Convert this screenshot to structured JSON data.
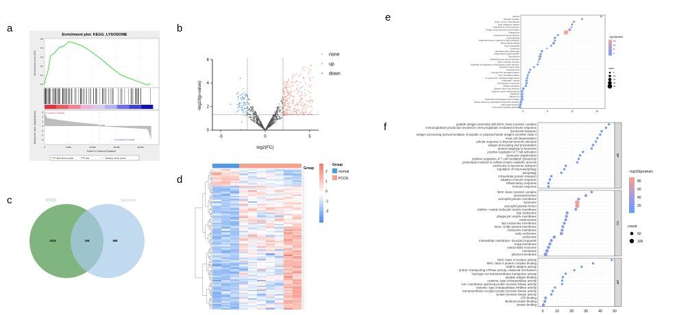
{
  "panel_labels": {
    "a": "a",
    "b": "b",
    "c": "c",
    "d": "d",
    "e": "e",
    "f": "f"
  },
  "colors": {
    "es_line": "#22dd22",
    "up": "#F8A08A",
    "down": "#4C9BEA",
    "none": "#555555",
    "normal": "#4C9BEA",
    "pcos": "#F8A08A",
    "venn_pcos": "#6aa86a",
    "venn_lysosome": "#a8cbea",
    "dot_low": "#619CFF",
    "dot_high": "#F8A08A"
  },
  "chart_data": [
    {
      "panel": "a",
      "type": "line",
      "title": "Enrichment plot: KEGG_LYSOSOME",
      "ylabel": "Enrichment score (ES)",
      "ylabel_bottom": "Ranked list metric (Signal2Noise)",
      "xlabel": "Rank in Ordered Dataset",
      "xticks": [
        "0",
        "5,000",
        "10,000",
        "15,000",
        "20,000"
      ],
      "yticks": [
        "0.5",
        "0.4",
        "0.3",
        "0.2",
        "0.1",
        "0.0"
      ],
      "yticks_bottom": [
        "3",
        "2",
        "1",
        "0",
        "-1",
        "-2",
        "-3"
      ],
      "xlim": [
        0,
        22500
      ],
      "ylim": [
        -0.02,
        0.5
      ],
      "es_curve": {
        "x": [
          0,
          300,
          600,
          900,
          1200,
          1600,
          2000,
          2600,
          3200,
          4000,
          5000,
          6000,
          7000,
          8000,
          10000,
          12000,
          14000,
          16000,
          18000,
          20000,
          21500,
          22000
        ],
        "y": [
          0,
          0.08,
          0.12,
          0.2,
          0.31,
          0.33,
          0.34,
          0.38,
          0.41,
          0.42,
          0.47,
          0.46,
          0.44,
          0.42,
          0.35,
          0.27,
          0.18,
          0.1,
          0.06,
          0.02,
          -0.01,
          0.01
        ]
      },
      "annotations": {
        "pos": "'Y' (positively correlated)",
        "zero": "Zero cross at 11404",
        "neg": "'N' (negatively correlated)"
      },
      "legend": [
        "Enrichment profile",
        "Hits",
        "Ranking metric scores"
      ]
    },
    {
      "panel": "b",
      "type": "scatter",
      "xlabel": "log2(FC)",
      "ylabel": "-log10(p-value)",
      "xticks": [
        -5,
        0,
        5
      ],
      "yticks": [
        0,
        2,
        4,
        6
      ],
      "xlim": [
        -6,
        6
      ],
      "ylim": [
        0,
        6
      ],
      "fc_threshold": 2,
      "p_threshold": 1.3,
      "legend": [
        "none",
        "up",
        "down"
      ]
    },
    {
      "panel": "c",
      "type": "venn",
      "sets": [
        {
          "name": "PCOS",
          "only": 2015
        },
        {
          "name": "lysosome",
          "only": 688
        }
      ],
      "intersection": 108
    },
    {
      "panel": "d",
      "type": "heatmap",
      "annotation_title": "Group",
      "groups": [
        "normal",
        "normal",
        "normal",
        "PCOS",
        "PCOS",
        "PCOS",
        "PCOS",
        "PCOS",
        "PCOS",
        "PCOS"
      ],
      "legend_groups": [
        "normal",
        "PCOS"
      ],
      "scale_ticks": [
        "2",
        "1",
        "0",
        "-1",
        "-2"
      ],
      "range": [
        -2.5,
        2.5
      ]
    },
    {
      "panel": "e",
      "type": "scatter",
      "xticks": [
        4,
        8,
        12,
        16
      ],
      "xlim": [
        3.9,
        17.4
      ],
      "color_title": "- log10(pvalue)",
      "color_ticks": [
        "16",
        "12",
        "8",
        "4"
      ],
      "color_range": [
        2,
        17
      ],
      "size_title": "count",
      "size_ticks": [
        "5",
        "10",
        "15",
        "20",
        "25"
      ],
      "terms": [
        {
          "name": "Asthma",
          "x": 16.7,
          "p": 4,
          "count": 6
        },
        {
          "name": "Allograft rejection",
          "x": 13.6,
          "p": 4,
          "count": 7
        },
        {
          "name": "Graft- versus- host disease",
          "x": 12.3,
          "p": 4,
          "count": 7
        },
        {
          "name": "Type I diabetes mellitus",
          "x": 12.0,
          "p": 4,
          "count": 7
        },
        {
          "name": "Collecting duct acid secretion",
          "x": 11.9,
          "p": 3,
          "count": 4
        },
        {
          "name": "Antigen processing and presentation",
          "x": 11.6,
          "p": 10,
          "count": 14
        },
        {
          "name": "Phagosome",
          "x": 11.0,
          "p": 17,
          "count": 24
        },
        {
          "name": "Autoimmune thyroid disease",
          "x": 9.7,
          "p": 4,
          "count": 7
        },
        {
          "name": "Leishmaniasis",
          "x": 9.2,
          "p": 5,
          "count": 9
        },
        {
          "name": "Intestinal immune network for IgA production",
          "x": 9.2,
          "p": 4,
          "count": 7
        },
        {
          "name": "Rheumatoid arthritis",
          "x": 9.0,
          "p": 8,
          "count": 12
        },
        {
          "name": "Viral myocarditis",
          "x": 8.6,
          "p": 4,
          "count": 7
        },
        {
          "name": "Lysosome",
          "x": 7.9,
          "p": 3,
          "count": 4
        },
        {
          "name": "Hematopoietic cell lineage",
          "x": 7.1,
          "p": 5,
          "count": 9
        },
        {
          "name": "Inflammatory bowel disease",
          "x": 6.9,
          "p": 4,
          "count": 7
        },
        {
          "name": "Tuberculosis",
          "x": 6.8,
          "p": 9,
          "count": 14
        },
        {
          "name": "Staphylococcus aureus infection",
          "x": 6.7,
          "p": 5,
          "count": 9
        },
        {
          "name": "Vibrio cholerae infection",
          "x": 6.5,
          "p": 3,
          "count": 4
        },
        {
          "name": "Epithelial cell signaling in Helicobacter pylori infection",
          "x": 6.4,
          "p": 4,
          "count": 6
        },
        {
          "name": "Synaptic vesicle cycle",
          "x": 5.8,
          "p": 4,
          "count": 6
        },
        {
          "name": "Toxoplasmosis",
          "x": 5.2,
          "p": 4,
          "count": 8
        },
        {
          "name": "Th1 and Th2 cell differentiation",
          "x": 5.0,
          "p": 4,
          "count": 8
        },
        {
          "name": "Th17 cell differentiation",
          "x": 4.8,
          "p": 4,
          "count": 8
        },
        {
          "name": "Fc gamma R- mediated phagocytosis",
          "x": 4.7,
          "p": 4,
          "count": 8
        },
        {
          "name": "Autophagy - animal",
          "x": 4.6,
          "p": 4,
          "count": 9
        },
        {
          "name": "Cell adhesion molecules",
          "x": 4.6,
          "p": 4,
          "count": 9
        },
        {
          "name": "Platelet activation",
          "x": 4.5,
          "p": 4,
          "count": 8
        },
        {
          "name": "Epstein- Barr virus infection",
          "x": 4.1,
          "p": 4,
          "count": 10
        },
        {
          "name": "Systemic lupus erythematosus",
          "x": 3.9,
          "p": 4,
          "count": 9
        },
        {
          "name": "Apoptosis",
          "x": 3.9,
          "p": 4,
          "count": 9
        },
        {
          "name": "Influenza A",
          "x": 3.9,
          "p": 4,
          "count": 9
        },
        {
          "name": "Neutrophil extracellular trap formation",
          "x": 3.9,
          "p": 4,
          "count": 10
        },
        {
          "name": "Kaposi sarcoma- associated herpesvirus infection",
          "x": 3.7,
          "p": 4,
          "count": 10
        },
        {
          "name": "Salmonella infection",
          "x": 3.6,
          "p": 4,
          "count": 10
        },
        {
          "name": "Chemokine signaling pathway",
          "x": 3.5,
          "p": 4,
          "count": 9
        }
      ]
    },
    {
      "panel": "f",
      "type": "scatter",
      "xticks": [
        0,
        10,
        20,
        30,
        40,
        50
      ],
      "xlim": [
        -1.5,
        50
      ],
      "color_title": "- log10(pvalue)",
      "color_ticks": [
        "80",
        "60",
        "40",
        "20"
      ],
      "color_range": [
        0,
        90
      ],
      "size_title": "count",
      "size_ticks": [
        "50",
        "100"
      ],
      "facets": [
        {
          "name": "BP",
          "terms": [
            {
              "name": "peptide antigen assembly with MHC class II protein complex",
              "x": 46,
              "p": 6,
              "count": 12
            },
            {
              "name": "immunoglobulin production involved in immunoglobulin mediated immune response",
              "x": 44,
              "p": 6,
              "count": 12
            },
            {
              "name": "lysosomal transport",
              "x": 41,
              "p": 8,
              "count": 15
            },
            {
              "name": "antigen processing and presentation of peptide or polysaccharide antigen via MHC class II",
              "x": 40,
              "p": 8,
              "count": 15
            },
            {
              "name": "mast cell degranulation",
              "x": 38,
              "p": 6,
              "count": 12
            },
            {
              "name": "cellular response to thyroid hormone stimulus",
              "x": 37,
              "p": 5,
              "count": 10
            },
            {
              "name": "antigen processing and presentation",
              "x": 35,
              "p": 8,
              "count": 16
            },
            {
              "name": "protein targeting to lysosome",
              "x": 34,
              "p": 6,
              "count": 12
            },
            {
              "name": "positive regulation of T cell activation",
              "x": 28,
              "p": 7,
              "count": 14
            },
            {
              "name": "lysosome organization",
              "x": 26,
              "p": 7,
              "count": 14
            },
            {
              "name": "positive regulation of T cell mediated cytotoxicity",
              "x": 25,
              "p": 6,
              "count": 12
            },
            {
              "name": "proteolysis involved in cellular protein catabolic process",
              "x": 24,
              "p": 7,
              "count": 14
            },
            {
              "name": "endosome to lysosome transport",
              "x": 16,
              "p": 6,
              "count": 13
            },
            {
              "name": "regulation of macroautophagy",
              "x": 15,
              "p": 6,
              "count": 13
            },
            {
              "name": "autophagy",
              "x": 13,
              "p": 7,
              "count": 15
            },
            {
              "name": "intracellular protein transport",
              "x": 6,
              "p": 7,
              "count": 17
            },
            {
              "name": "adaptive immune response",
              "x": 5,
              "p": 7,
              "count": 17
            },
            {
              "name": "inflammatory response",
              "x": 4,
              "p": 7,
              "count": 18
            },
            {
              "name": "immune response",
              "x": 4,
              "p": 8,
              "count": 20
            }
          ]
        },
        {
          "name": "CC",
          "terms": [
            {
              "name": "MHC class II protein complex",
              "x": 34,
              "p": 12,
              "count": 14
            },
            {
              "name": "lysosomal lumen",
              "x": 30,
              "p": 40,
              "count": 40
            },
            {
              "name": "azurophil granule membrane",
              "x": 25,
              "p": 20,
              "count": 30
            },
            {
              "name": "lysosome",
              "x": 24,
              "p": 88,
              "count": 100
            },
            {
              "name": "azurophil granule lumen",
              "x": 24,
              "p": 80,
              "count": 90
            },
            {
              "name": "clathrin- coated endocytic vesicle membrane",
              "x": 23,
              "p": 20,
              "count": 28
            },
            {
              "name": "late endosome",
              "x": 17,
              "p": 25,
              "count": 40
            },
            {
              "name": "phagocytic vesicle membrane",
              "x": 16.5,
              "p": 25,
              "count": 38
            },
            {
              "name": "melanosome",
              "x": 16,
              "p": 25,
              "count": 38
            },
            {
              "name": "late endosome membrane",
              "x": 15,
              "p": 22,
              "count": 35
            },
            {
              "name": "trans- Golgi network membrane",
              "x": 14,
              "p": 20,
              "count": 33
            },
            {
              "name": "endosome membrane",
              "x": 13.5,
              "p": 22,
              "count": 36
            },
            {
              "name": "early endosome",
              "x": 13,
              "p": 35,
              "count": 55
            },
            {
              "name": "endosome",
              "x": 8,
              "p": 25,
              "count": 50
            },
            {
              "name": "intracellular membrane- bounded organelle",
              "x": 6,
              "p": 15,
              "count": 40
            },
            {
              "name": "Golgi membrane",
              "x": 5,
              "p": 15,
              "count": 42
            },
            {
              "name": "extracellular exosome",
              "x": 4,
              "p": 15,
              "count": 45
            },
            {
              "name": "membrane",
              "x": 3,
              "p": 20,
              "count": 60
            },
            {
              "name": "plasma membrane",
              "x": 2,
              "p": 20,
              "count": 70
            }
          ]
        },
        {
          "name": "MF",
          "terms": [
            {
              "name": "MHC class II receptor activity",
              "x": 48,
              "p": 5,
              "count": 9
            },
            {
              "name": "MHC class II protein complex binding",
              "x": 35,
              "p": 6,
              "count": 12
            },
            {
              "name": "clathrin adaptor activity",
              "x": 27,
              "p": 5,
              "count": 9
            },
            {
              "name": "proton- transporting ATPase activity, rotational mechanism",
              "x": 22,
              "p": 5,
              "count": 9
            },
            {
              "name": "hydrogen ion transmembrane transporter activity",
              "x": 16,
              "p": 5,
              "count": 10
            },
            {
              "name": "peptide antigen binding",
              "x": 14,
              "p": 5,
              "count": 10
            },
            {
              "name": "cysteine- type endopeptidase activity",
              "x": 13.5,
              "p": 5,
              "count": 10
            },
            {
              "name": "non- membrane spanning protein tyrosine kinase activity",
              "x": 13.5,
              "p": 5,
              "count": 10
            },
            {
              "name": "cysteine- type endopeptidase inhibitor activity",
              "x": 8.5,
              "p": 6,
              "count": 13
            },
            {
              "name": "transmembrane receptor protein tyrosine kinase activity",
              "x": 7,
              "p": 6,
              "count": 13
            },
            {
              "name": "protein tyrosine kinase activity",
              "x": 6,
              "p": 6,
              "count": 13
            },
            {
              "name": "ATP binding",
              "x": 2,
              "p": 8,
              "count": 25
            },
            {
              "name": "identical protein binding",
              "x": 1.5,
              "p": 8,
              "count": 28
            },
            {
              "name": "protein binding",
              "x": 0.5,
              "p": 10,
              "count": 40
            }
          ]
        }
      ]
    }
  ]
}
